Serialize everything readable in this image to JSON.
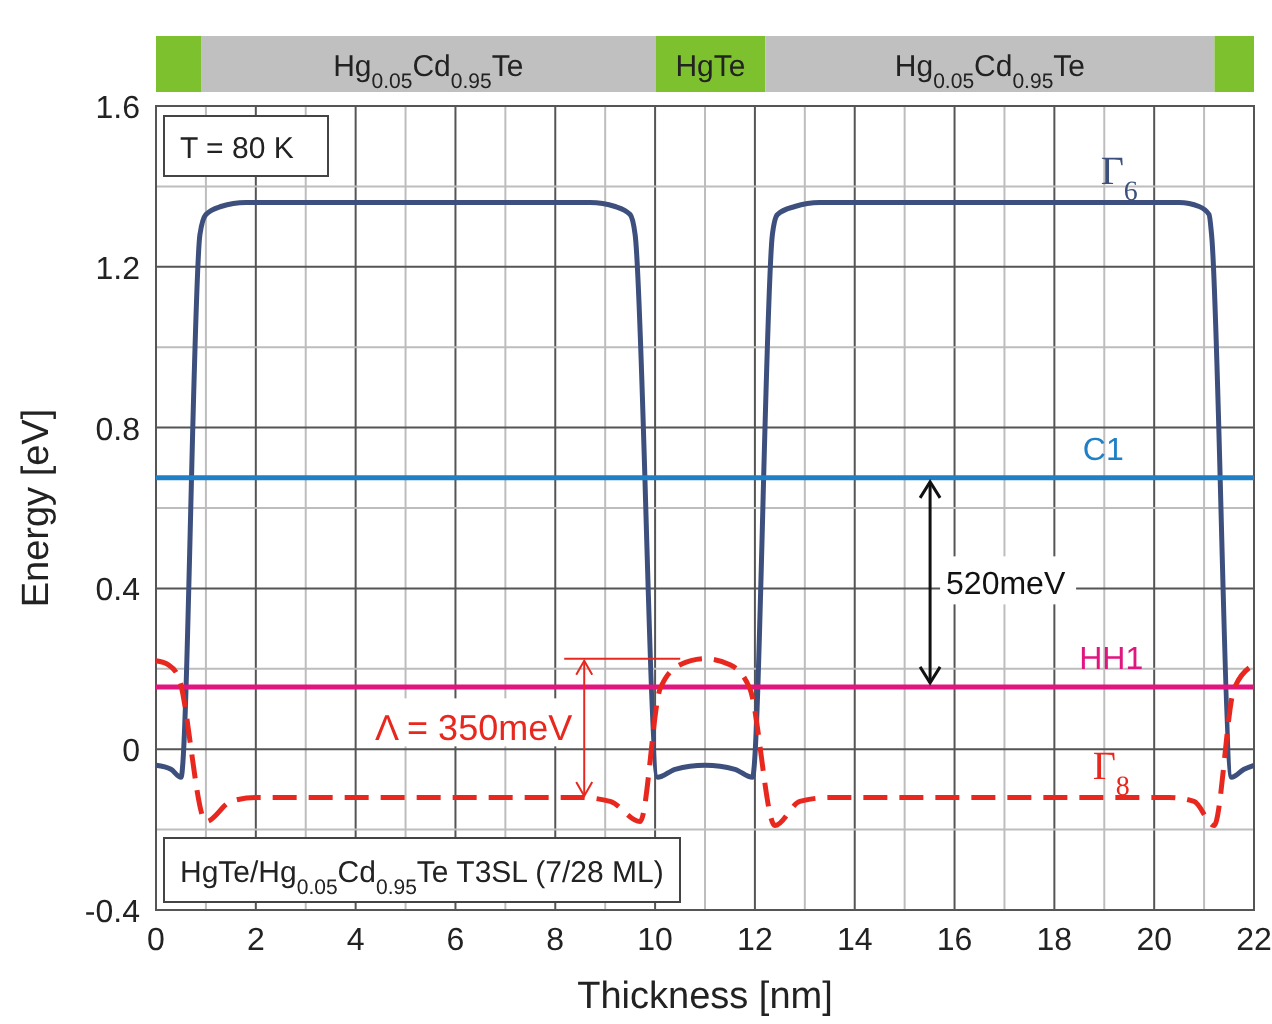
{
  "chart_data": {
    "type": "line",
    "xlabel": "Thickness [nm]",
    "ylabel": "Energy [eV]",
    "xlim": [
      0,
      22
    ],
    "ylim": [
      -0.4,
      1.6
    ],
    "xticks": [
      0,
      {
        "value": 1,
        "label": null
      },
      2,
      {
        "value": 3,
        "label": null
      },
      4,
      {
        "value": 5,
        "label": null
      },
      6,
      {
        "value": 7,
        "label": null
      },
      8,
      {
        "value": 9,
        "label": null
      },
      10,
      {
        "value": 11,
        "label": null
      },
      12,
      {
        "value": 13,
        "label": null
      },
      14,
      {
        "value": 15,
        "label": null
      },
      16,
      {
        "value": 17,
        "label": null
      },
      18,
      {
        "value": 19,
        "label": null
      },
      20,
      {
        "value": 21,
        "label": null
      },
      22
    ],
    "yticks": [
      -0.4,
      {
        "value": -0.2,
        "label": null
      },
      0,
      {
        "value": 0.2,
        "label": null
      },
      0.4,
      {
        "value": 0.6,
        "label": null
      },
      0.8,
      {
        "value": 1.0,
        "label": null
      },
      1.2,
      {
        "value": 1.4,
        "label": null
      },
      1.6
    ],
    "grid": true,
    "marker": "none",
    "series": [
      {
        "name": "Γ$_{6}$",
        "color": "#3d4f7c",
        "line_style": "solid",
        "x": [
          0,
          0.3,
          0.5,
          0.88,
          1.0,
          1.3,
          1.8,
          8.7,
          9.2,
          9.5,
          9.6,
          10.05,
          10.4,
          11,
          11.6,
          11.95,
          12.35,
          12.45,
          12.8,
          13.3,
          20.5,
          20.9,
          21.1,
          21.15,
          21.55,
          21.8,
          22
        ],
        "values": [
          -0.04,
          -0.05,
          -0.07,
          1.28,
          1.33,
          1.35,
          1.36,
          1.36,
          1.35,
          1.33,
          1.28,
          -0.07,
          -0.05,
          -0.04,
          -0.05,
          -0.07,
          1.28,
          1.33,
          1.35,
          1.36,
          1.36,
          1.35,
          1.33,
          1.28,
          -0.07,
          -0.05,
          -0.04
        ]
      },
      {
        "name": "HH1",
        "color": "#e0157f",
        "line_style": "solid",
        "x": [
          0,
          22
        ],
        "values": [
          0.155,
          0.155
        ]
      },
      {
        "name": "C1",
        "color": "#1f7fc7",
        "line_style": "solid",
        "x": [
          0,
          22
        ],
        "values": [
          0.675,
          0.675
        ]
      },
      {
        "name": "Γ$_{8}$",
        "color": "#e8281e",
        "line_style": "dashed",
        "x": [
          0,
          0.25,
          0.45,
          1.0,
          1.5,
          2.0,
          8.5,
          9.1,
          9.7,
          10.1,
          10.5,
          11,
          11.5,
          11.9,
          12.4,
          12.9,
          13.5,
          20.3,
          20.8,
          21.2,
          21.6,
          22
        ],
        "values": [
          0.22,
          0.21,
          0.18,
          -0.18,
          -0.13,
          -0.12,
          -0.12,
          -0.13,
          -0.18,
          0.15,
          0.21,
          0.225,
          0.21,
          0.15,
          -0.19,
          -0.13,
          -0.12,
          -0.12,
          -0.13,
          -0.19,
          0.15,
          0.21
        ]
      }
    ],
    "annotations": [
      "T = 80 K",
      "HgTe/Hg$_{0.05}$Cd$_{0.95}$Te T3SL (7/28 ML)",
      "520meV",
      "Λ = 350meV",
      "Hg$_{0.05}$Cd$_{0.95}$Te",
      "HgTe",
      "Hg$_{0.05}$Cd$_{0.95}$Te"
    ]
  }
}
